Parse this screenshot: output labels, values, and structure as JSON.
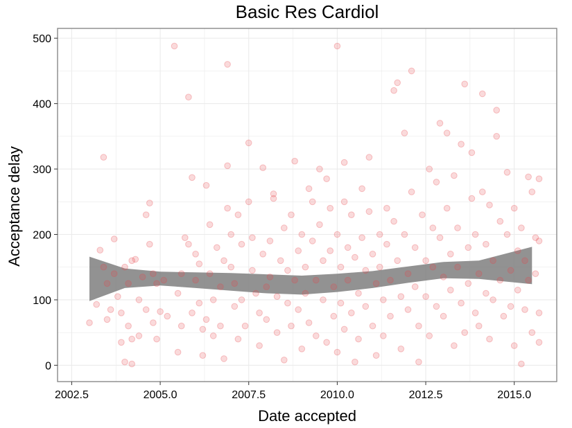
{
  "chart_data": {
    "type": "scatter",
    "title": "Basic Res Cardiol",
    "xlabel": "Date accepted",
    "ylabel": "Acceptance delay",
    "xlim": [
      2002.1,
      2016.2
    ],
    "ylim": [
      -25,
      515
    ],
    "xticks": [
      2002.5,
      2005.0,
      2007.5,
      2010.0,
      2012.5,
      2015.0
    ],
    "xtick_labels": [
      "2002.5",
      "2005.0",
      "2007.5",
      "2010.0",
      "2012.5",
      "2015.0"
    ],
    "yticks": [
      0,
      100,
      200,
      300,
      400,
      500
    ],
    "ytick_labels": [
      "0",
      "100",
      "200",
      "300",
      "400",
      "500"
    ],
    "grid": true,
    "legend": "none",
    "colors": {
      "points": "#e8474b",
      "band": "#7f7f7f",
      "grid": "#ebebeb",
      "border": "#7f7f7f"
    },
    "point_alpha": 0.2,
    "smooth_band": {
      "x": [
        2003.0,
        2004.0,
        2005.0,
        2006.0,
        2007.0,
        2008.0,
        2009.0,
        2010.0,
        2011.0,
        2012.0,
        2013.0,
        2014.0,
        2015.5
      ],
      "lower": [
        98,
        118,
        122,
        118,
        114,
        110,
        108,
        112,
        118,
        126,
        133,
        132,
        124
      ],
      "upper": [
        166,
        148,
        143,
        142,
        141,
        139,
        137,
        140,
        144,
        151,
        158,
        160,
        181
      ]
    },
    "points": [
      [
        2003.0,
        65
      ],
      [
        2003.2,
        93
      ],
      [
        2003.3,
        176
      ],
      [
        2003.4,
        318
      ],
      [
        2003.4,
        150
      ],
      [
        2003.5,
        125
      ],
      [
        2003.5,
        70
      ],
      [
        2003.6,
        85
      ],
      [
        2003.7,
        193
      ],
      [
        2003.7,
        140
      ],
      [
        2003.8,
        105
      ],
      [
        2003.9,
        35
      ],
      [
        2003.9,
        80
      ],
      [
        2004.0,
        5
      ],
      [
        2004.0,
        150
      ],
      [
        2004.1,
        125
      ],
      [
        2004.1,
        60
      ],
      [
        2004.2,
        2
      ],
      [
        2004.2,
        160
      ],
      [
        2004.2,
        40
      ],
      [
        2004.3,
        162
      ],
      [
        2004.4,
        100
      ],
      [
        2004.4,
        45
      ],
      [
        2004.5,
        135
      ],
      [
        2004.6,
        85
      ],
      [
        2004.6,
        230
      ],
      [
        2004.7,
        248
      ],
      [
        2004.7,
        185
      ],
      [
        2004.8,
        140
      ],
      [
        2004.8,
        65
      ],
      [
        2004.9,
        125
      ],
      [
        2004.9,
        40
      ],
      [
        2005.0,
        82
      ],
      [
        2005.1,
        130
      ],
      [
        2005.2,
        75
      ],
      [
        2005.4,
        488
      ],
      [
        2005.5,
        110
      ],
      [
        2005.5,
        20
      ],
      [
        2005.6,
        140
      ],
      [
        2005.6,
        60
      ],
      [
        2005.7,
        195
      ],
      [
        2005.8,
        185
      ],
      [
        2005.8,
        410
      ],
      [
        2005.9,
        287
      ],
      [
        2005.9,
        80
      ],
      [
        2006.0,
        170
      ],
      [
        2006.0,
        130
      ],
      [
        2006.1,
        155
      ],
      [
        2006.1,
        95
      ],
      [
        2006.2,
        15
      ],
      [
        2006.2,
        55
      ],
      [
        2006.3,
        275
      ],
      [
        2006.3,
        70
      ],
      [
        2006.4,
        215
      ],
      [
        2006.4,
        140
      ],
      [
        2006.5,
        100
      ],
      [
        2006.5,
        45
      ],
      [
        2006.6,
        180
      ],
      [
        2006.7,
        120
      ],
      [
        2006.7,
        60
      ],
      [
        2006.8,
        10
      ],
      [
        2006.8,
        160
      ],
      [
        2006.9,
        460
      ],
      [
        2006.9,
        305
      ],
      [
        2006.9,
        240
      ],
      [
        2007.0,
        200
      ],
      [
        2007.0,
        150
      ],
      [
        2007.1,
        125
      ],
      [
        2007.1,
        90
      ],
      [
        2007.2,
        40
      ],
      [
        2007.2,
        230
      ],
      [
        2007.3,
        185
      ],
      [
        2007.3,
        100
      ],
      [
        2007.4,
        60
      ],
      [
        2007.5,
        340
      ],
      [
        2007.5,
        250
      ],
      [
        2007.6,
        195
      ],
      [
        2007.6,
        145
      ],
      [
        2007.7,
        110
      ],
      [
        2007.8,
        80
      ],
      [
        2007.8,
        30
      ],
      [
        2007.9,
        302
      ],
      [
        2007.9,
        170
      ],
      [
        2008.0,
        120
      ],
      [
        2008.0,
        70
      ],
      [
        2008.1,
        190
      ],
      [
        2008.1,
        135
      ],
      [
        2008.2,
        262
      ],
      [
        2008.2,
        255
      ],
      [
        2008.3,
        105
      ],
      [
        2008.3,
        50
      ],
      [
        2008.4,
        160
      ],
      [
        2008.5,
        8
      ],
      [
        2008.5,
        210
      ],
      [
        2008.6,
        145
      ],
      [
        2008.6,
        95
      ],
      [
        2008.7,
        230
      ],
      [
        2008.7,
        60
      ],
      [
        2008.8,
        312
      ],
      [
        2008.8,
        130
      ],
      [
        2008.9,
        175
      ],
      [
        2008.9,
        85
      ],
      [
        2009.0,
        25
      ],
      [
        2009.0,
        200
      ],
      [
        2009.1,
        150
      ],
      [
        2009.1,
        110
      ],
      [
        2009.2,
        270
      ],
      [
        2009.2,
        65
      ],
      [
        2009.3,
        250
      ],
      [
        2009.3,
        190
      ],
      [
        2009.4,
        130
      ],
      [
        2009.4,
        45
      ],
      [
        2009.5,
        300
      ],
      [
        2009.5,
        215
      ],
      [
        2009.6,
        160
      ],
      [
        2009.6,
        100
      ],
      [
        2009.7,
        285
      ],
      [
        2009.7,
        35
      ],
      [
        2009.8,
        240
      ],
      [
        2009.8,
        175
      ],
      [
        2009.9,
        120
      ],
      [
        2009.9,
        75
      ],
      [
        2010.0,
        488
      ],
      [
        2010.0,
        20
      ],
      [
        2010.0,
        200
      ],
      [
        2010.1,
        150
      ],
      [
        2010.1,
        95
      ],
      [
        2010.2,
        310
      ],
      [
        2010.2,
        250
      ],
      [
        2010.2,
        55
      ],
      [
        2010.3,
        180
      ],
      [
        2010.3,
        130
      ],
      [
        2010.4,
        230
      ],
      [
        2010.4,
        80
      ],
      [
        2010.5,
        5
      ],
      [
        2010.5,
        165
      ],
      [
        2010.6,
        110
      ],
      [
        2010.6,
        40
      ],
      [
        2010.7,
        270
      ],
      [
        2010.7,
        195
      ],
      [
        2010.8,
        145
      ],
      [
        2010.8,
        90
      ],
      [
        2010.9,
        318
      ],
      [
        2010.9,
        235
      ],
      [
        2011.0,
        170
      ],
      [
        2011.0,
        60
      ],
      [
        2011.1,
        125
      ],
      [
        2011.1,
        15
      ],
      [
        2011.2,
        200
      ],
      [
        2011.2,
        150
      ],
      [
        2011.3,
        100
      ],
      [
        2011.3,
        45
      ],
      [
        2011.4,
        240
      ],
      [
        2011.4,
        185
      ],
      [
        2011.5,
        130
      ],
      [
        2011.5,
        75
      ],
      [
        2011.6,
        420
      ],
      [
        2011.6,
        220
      ],
      [
        2011.7,
        432
      ],
      [
        2011.7,
        160
      ],
      [
        2011.8,
        105
      ],
      [
        2011.8,
        25
      ],
      [
        2011.9,
        355
      ],
      [
        2011.9,
        200
      ],
      [
        2012.0,
        140
      ],
      [
        2012.0,
        85
      ],
      [
        2012.1,
        450
      ],
      [
        2012.1,
        265
      ],
      [
        2012.2,
        180
      ],
      [
        2012.2,
        120
      ],
      [
        2012.3,
        60
      ],
      [
        2012.3,
        5
      ],
      [
        2012.4,
        230
      ],
      [
        2012.5,
        160
      ],
      [
        2012.5,
        105
      ],
      [
        2012.6,
        300
      ],
      [
        2012.6,
        45
      ],
      [
        2012.7,
        210
      ],
      [
        2012.7,
        150
      ],
      [
        2012.8,
        90
      ],
      [
        2012.8,
        280
      ],
      [
        2012.9,
        370
      ],
      [
        2012.9,
        195
      ],
      [
        2013.0,
        135
      ],
      [
        2013.0,
        75
      ],
      [
        2013.1,
        355
      ],
      [
        2013.1,
        240
      ],
      [
        2013.2,
        170
      ],
      [
        2013.2,
        115
      ],
      [
        2013.3,
        30
      ],
      [
        2013.3,
        290
      ],
      [
        2013.4,
        210
      ],
      [
        2013.4,
        150
      ],
      [
        2013.5,
        95
      ],
      [
        2013.5,
        338
      ],
      [
        2013.6,
        50
      ],
      [
        2013.6,
        430
      ],
      [
        2013.7,
        180
      ],
      [
        2013.7,
        125
      ],
      [
        2013.8,
        325
      ],
      [
        2013.8,
        255
      ],
      [
        2013.9,
        80
      ],
      [
        2013.9,
        200
      ],
      [
        2014.0,
        140
      ],
      [
        2014.0,
        60
      ],
      [
        2014.1,
        415
      ],
      [
        2014.1,
        265
      ],
      [
        2014.2,
        185
      ],
      [
        2014.2,
        110
      ],
      [
        2014.3,
        245
      ],
      [
        2014.3,
        40
      ],
      [
        2014.4,
        160
      ],
      [
        2014.4,
        100
      ],
      [
        2014.5,
        390
      ],
      [
        2014.5,
        350
      ],
      [
        2014.6,
        220
      ],
      [
        2014.6,
        130
      ],
      [
        2014.7,
        75
      ],
      [
        2014.8,
        295
      ],
      [
        2014.8,
        200
      ],
      [
        2014.9,
        145
      ],
      [
        2014.9,
        90
      ],
      [
        2015.0,
        30
      ],
      [
        2015.0,
        240
      ],
      [
        2015.1,
        175
      ],
      [
        2015.1,
        115
      ],
      [
        2015.2,
        2
      ],
      [
        2015.2,
        210
      ],
      [
        2015.3,
        160
      ],
      [
        2015.3,
        85
      ],
      [
        2015.4,
        288
      ],
      [
        2015.4,
        130
      ],
      [
        2015.5,
        50
      ],
      [
        2015.5,
        265
      ],
      [
        2015.6,
        195
      ],
      [
        2015.6,
        140
      ],
      [
        2015.7,
        285
      ],
      [
        2015.7,
        80
      ],
      [
        2015.7,
        190
      ],
      [
        2015.7,
        35
      ]
    ]
  }
}
